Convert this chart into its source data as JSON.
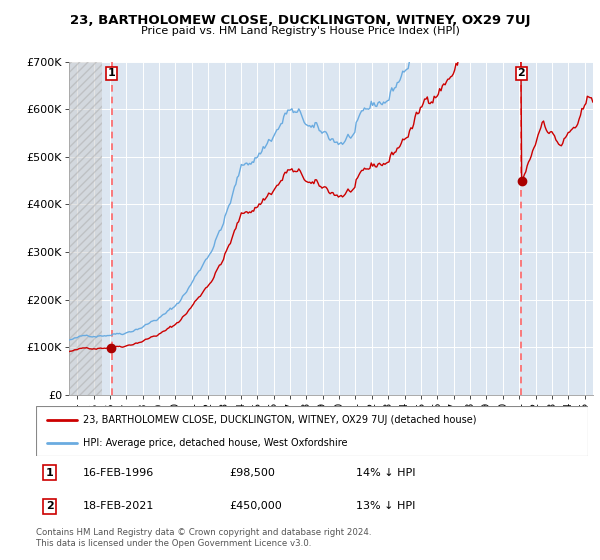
{
  "title": "23, BARTHOLOMEW CLOSE, DUCKLINGTON, WITNEY, OX29 7UJ",
  "subtitle": "Price paid vs. HM Land Registry's House Price Index (HPI)",
  "legend_line1": "23, BARTHOLOMEW CLOSE, DUCKLINGTON, WITNEY, OX29 7UJ (detached house)",
  "legend_line2": "HPI: Average price, detached house, West Oxfordshire",
  "annotation1_date": "16-FEB-1996",
  "annotation1_price": "£98,500",
  "annotation1_hpi": "14% ↓ HPI",
  "annotation2_date": "18-FEB-2021",
  "annotation2_price": "£450,000",
  "annotation2_hpi": "13% ↓ HPI",
  "footer": "Contains HM Land Registry data © Crown copyright and database right 2024.\nThis data is licensed under the Open Government Licence v3.0.",
  "hpi_color": "#6aabe0",
  "price_color": "#cc0000",
  "marker_color": "#aa0000",
  "vline_color": "#ff6666",
  "background_plot": "#dce6f1",
  "background_fig": "#ffffff",
  "grid_color": "#ffffff",
  "hatch_color": "#bbbbbb",
  "ylim": [
    0,
    700000
  ],
  "yticks": [
    0,
    100000,
    200000,
    300000,
    400000,
    500000,
    600000,
    700000
  ],
  "ytick_labels": [
    "£0",
    "£100K",
    "£200K",
    "£300K",
    "£400K",
    "£500K",
    "£600K",
    "£700K"
  ],
  "purchase1_year": 1996.12,
  "purchase1_price": 98500,
  "purchase2_year": 2021.12,
  "purchase2_price": 450000,
  "xlim_start": 1993.5,
  "xlim_end": 2025.5,
  "hatch_end": 1995.5
}
